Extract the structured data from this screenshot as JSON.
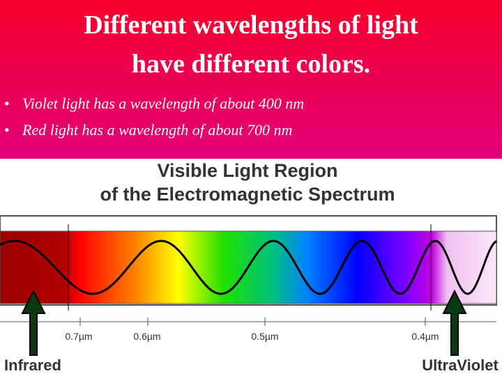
{
  "title": [
    "Different wavelengths of light",
    "have different colors."
  ],
  "bullets": [
    "Violet light has a wavelength of about 400 nm",
    "Red light has a wavelength of about 700 nm"
  ],
  "figure": {
    "title": [
      "Visible Light Region",
      "of the Electromagnetic Spectrum"
    ],
    "scale_labels": [
      "0.7µm",
      "0.6µm",
      "0.5µm",
      "0.4µm"
    ],
    "arrow_labels": [
      "Infrared",
      "UltraViolet"
    ]
  }
}
